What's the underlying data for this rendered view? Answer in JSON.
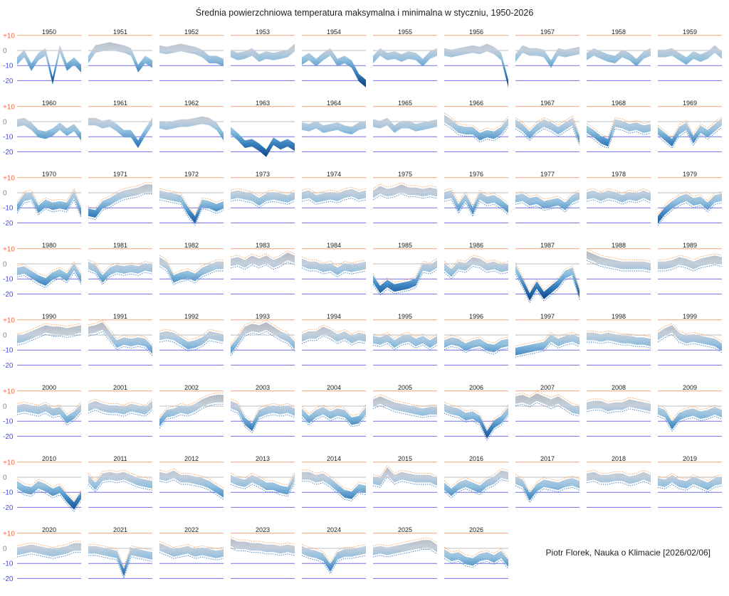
{
  "chart_data": {
    "type": "area",
    "title": "Średnia powierzchniowa temperatura maksymalna i minimalna w styczniu, 1950-2026",
    "credit": "Piotr Florek, Nauka o Klimacie [2026/02/06]",
    "xlabel": "",
    "ylabel": "",
    "ylim": [
      -22,
      12
    ],
    "y_ticks": [
      "+10",
      "0",
      "-10",
      "-20"
    ],
    "y_tick_values": [
      10,
      0,
      -10,
      -20
    ],
    "grid": true,
    "band_width_c": 5,
    "dotted_extremes_from_year": 1966,
    "colors": {
      "plus10": "#f4a07a",
      "zero": "#bdbdbd",
      "minus": "#7272e8",
      "warm": "#b7b7bf",
      "cold": "#1b5a9e",
      "dot_max": "#f5a05a",
      "dot_min": "#3f7fc0"
    },
    "years": [
      {
        "year": "1950",
        "mid": [
          -7,
          -2,
          -11,
          -4,
          -1,
          -20,
          1,
          -11,
          -7,
          -12
        ]
      },
      {
        "year": "1951",
        "mid": [
          -6,
          1,
          2,
          3,
          2,
          1,
          -1,
          -12,
          -6,
          -9
        ]
      },
      {
        "year": "1952",
        "mid": [
          1,
          0,
          1,
          2,
          1,
          0,
          -2,
          -6,
          -6,
          -8
        ]
      },
      {
        "year": "1953",
        "mid": [
          -2,
          -4,
          -3,
          -1,
          -5,
          -3,
          -4,
          -3,
          -2,
          2
        ]
      },
      {
        "year": "1954",
        "mid": [
          -7,
          -4,
          -8,
          -4,
          -1,
          -8,
          -6,
          -9,
          -18,
          -22
        ]
      },
      {
        "year": "1955",
        "mid": [
          -6,
          -1,
          -4,
          -3,
          -5,
          -3,
          -4,
          -8,
          -3,
          -1
        ]
      },
      {
        "year": "1956",
        "mid": [
          -1,
          -2,
          -1,
          0,
          1,
          0,
          2,
          0,
          -4,
          -22
        ]
      },
      {
        "year": "1957",
        "mid": [
          -5,
          1,
          -1,
          -1,
          -2,
          -9,
          -1,
          -2,
          -1,
          0
        ]
      },
      {
        "year": "1958",
        "mid": [
          -4,
          -1,
          -3,
          -5,
          -6,
          -2,
          -4,
          -8,
          -3,
          -1
        ]
      },
      {
        "year": "1959",
        "mid": [
          -2,
          -2,
          -1,
          -4,
          -7,
          -3,
          -5,
          -3,
          1,
          -3
        ]
      },
      {
        "year": "1960",
        "mid": [
          -1,
          0,
          -3,
          -8,
          -9,
          -7,
          -3,
          -7,
          -4,
          -10
        ]
      },
      {
        "year": "1961",
        "mid": [
          0,
          0,
          -2,
          -1,
          -4,
          -8,
          -8,
          -15,
          -7,
          0
        ]
      },
      {
        "year": "1962",
        "mid": [
          -2,
          -3,
          -2,
          -1,
          -1,
          0,
          1,
          0,
          -3,
          -10
        ]
      },
      {
        "year": "1963",
        "mid": [
          -6,
          -10,
          -15,
          -14,
          -17,
          -21,
          -13,
          -16,
          -14,
          -17
        ]
      },
      {
        "year": "1964",
        "mid": [
          -3,
          -4,
          -2,
          -5,
          -4,
          -3,
          -5,
          -6,
          -3,
          -2
        ]
      },
      {
        "year": "1965",
        "mid": [
          -1,
          -2,
          0,
          -5,
          -2,
          -2,
          -4,
          -3,
          -2,
          -1
        ]
      },
      {
        "year": "1966",
        "mid": [
          2,
          -1,
          -5,
          -6,
          -6,
          -10,
          -8,
          -9,
          -6,
          0
        ]
      },
      {
        "year": "1967",
        "mid": [
          -1,
          -4,
          -9,
          -4,
          -1,
          -3,
          -6,
          -3,
          0,
          -12
        ]
      },
      {
        "year": "1968",
        "mid": [
          -5,
          -8,
          -12,
          -14,
          -1,
          -2,
          -4,
          -3,
          -5,
          -4
        ]
      },
      {
        "year": "1969",
        "mid": [
          -6,
          -10,
          -14,
          -6,
          -3,
          -12,
          -5,
          -8,
          -4,
          0
        ]
      },
      {
        "year": "1970",
        "mid": [
          -10,
          -3,
          -2,
          -11,
          -7,
          -9,
          -8,
          -9,
          -1,
          -13
        ]
      },
      {
        "year": "1971",
        "mid": [
          -13,
          -14,
          -8,
          -6,
          -3,
          -1,
          0,
          1,
          3,
          3
        ]
      },
      {
        "year": "1972",
        "mid": [
          -1,
          -2,
          -3,
          -4,
          -12,
          -18,
          -7,
          -8,
          -10,
          -8
        ]
      },
      {
        "year": "1973",
        "mid": [
          -2,
          -1,
          -2,
          -3,
          -6,
          -3,
          -2,
          -3,
          -4,
          -2
        ]
      },
      {
        "year": "1974",
        "mid": [
          -2,
          -1,
          -4,
          -3,
          -2,
          -3,
          -1,
          0,
          -2,
          -1
        ]
      },
      {
        "year": "1975",
        "mid": [
          -1,
          2,
          0,
          1,
          3,
          1,
          1,
          0,
          1,
          0
        ]
      },
      {
        "year": "1976",
        "mid": [
          -2,
          -1,
          -10,
          -3,
          -12,
          -2,
          -5,
          -4,
          -7,
          -11
        ]
      },
      {
        "year": "1977",
        "mid": [
          -4,
          -3,
          -6,
          -5,
          -8,
          -7,
          -6,
          -9,
          -4,
          -2
        ]
      },
      {
        "year": "1978",
        "mid": [
          -2,
          -1,
          -3,
          -1,
          -2,
          -4,
          -2,
          -3,
          -1,
          -3
        ]
      },
      {
        "year": "1979",
        "mid": [
          -18,
          -12,
          -8,
          -5,
          -3,
          -6,
          -5,
          -9,
          -4,
          -3
        ]
      },
      {
        "year": "1980",
        "mid": [
          -5,
          -4,
          -7,
          -10,
          -12,
          -8,
          -6,
          -9,
          -2,
          -10
        ]
      },
      {
        "year": "1981",
        "mid": [
          -1,
          -3,
          -10,
          -5,
          -3,
          -4,
          -3,
          -4,
          -2,
          -3
        ]
      },
      {
        "year": "1982",
        "mid": [
          2,
          -1,
          -10,
          -8,
          -7,
          -9,
          -5,
          -3,
          -1,
          -1
        ]
      },
      {
        "year": "1983",
        "mid": [
          1,
          2,
          0,
          3,
          1,
          3,
          0,
          2,
          5,
          3
        ]
      },
      {
        "year": "1984",
        "mid": [
          1,
          -1,
          -1,
          -3,
          -2,
          -5,
          -2,
          -3,
          -2,
          -1
        ]
      },
      {
        "year": "1985",
        "mid": [
          -10,
          -17,
          -13,
          -16,
          -15,
          -14,
          -12,
          -2,
          -3,
          0
        ]
      },
      {
        "year": "1986",
        "mid": [
          -2,
          -6,
          -1,
          -2,
          2,
          1,
          -2,
          -1,
          -3,
          -2
        ]
      },
      {
        "year": "1987",
        "mid": [
          -3,
          -12,
          -22,
          -14,
          -21,
          -17,
          -13,
          -7,
          -5,
          -20
        ]
      },
      {
        "year": "1988",
        "mid": [
          6,
          4,
          2,
          1,
          0,
          -1,
          -1,
          -1,
          -1,
          -2
        ]
      },
      {
        "year": "1989",
        "mid": [
          -1,
          -1,
          0,
          2,
          1,
          -1,
          1,
          2,
          3,
          2
        ]
      },
      {
        "year": "1990",
        "mid": [
          -3,
          -2,
          0,
          2,
          4,
          3,
          3,
          2,
          3,
          4
        ]
      },
      {
        "year": "1991",
        "mid": [
          3,
          4,
          6,
          0,
          -6,
          -4,
          -5,
          -4,
          -5,
          -10
        ]
      },
      {
        "year": "1992",
        "mid": [
          -1,
          0,
          -1,
          -4,
          -7,
          -6,
          -4,
          0,
          -1,
          -2
        ]
      },
      {
        "year": "1993",
        "mid": [
          -10,
          -4,
          3,
          5,
          4,
          6,
          3,
          0,
          -2,
          -7
        ]
      },
      {
        "year": "1994",
        "mid": [
          -2,
          0,
          0,
          3,
          1,
          -2,
          0,
          -3,
          -1,
          -2
        ]
      },
      {
        "year": "1995",
        "mid": [
          -3,
          -4,
          -2,
          -6,
          -3,
          -2,
          -5,
          -3,
          -6,
          -3
        ]
      },
      {
        "year": "1996",
        "mid": [
          -6,
          -4,
          -5,
          -8,
          -6,
          -5,
          -8,
          -9,
          -6,
          -5
        ]
      },
      {
        "year": "1997",
        "mid": [
          -11,
          -10,
          -9,
          -8,
          -7,
          -2,
          -5,
          -3,
          -2,
          -4
        ]
      },
      {
        "year": "1998",
        "mid": [
          -1,
          -1,
          -2,
          -1,
          -2,
          -3,
          -3,
          -4,
          -4,
          -5
        ]
      },
      {
        "year": "1999",
        "mid": [
          -1,
          2,
          4,
          -1,
          -3,
          -2,
          -3,
          -4,
          -5,
          -8
        ]
      },
      {
        "year": "2000",
        "mid": [
          -2,
          -1,
          -2,
          -3,
          -1,
          -4,
          -3,
          -9,
          -6,
          -1
        ]
      },
      {
        "year": "2001",
        "mid": [
          -1,
          1,
          -1,
          -2,
          -2,
          -3,
          -1,
          -2,
          -3,
          1
        ]
      },
      {
        "year": "2002",
        "mid": [
          -11,
          -5,
          -4,
          -2,
          -3,
          -1,
          2,
          4,
          5,
          5
        ]
      },
      {
        "year": "2003",
        "mid": [
          1,
          -1,
          -10,
          -14,
          -5,
          -3,
          -2,
          -3,
          -2,
          -4
        ]
      },
      {
        "year": "2004",
        "mid": [
          -4,
          -9,
          -5,
          -3,
          -6,
          -4,
          -5,
          -10,
          -9,
          -3
        ]
      },
      {
        "year": "2005",
        "mid": [
          2,
          4,
          2,
          0,
          -1,
          -2,
          -3,
          -4,
          -3,
          -3
        ]
      },
      {
        "year": "2006",
        "mid": [
          -1,
          -3,
          -4,
          -7,
          -6,
          -9,
          -19,
          -12,
          -9,
          -3
        ]
      },
      {
        "year": "2007",
        "mid": [
          4,
          5,
          3,
          6,
          4,
          2,
          4,
          1,
          -2,
          -3
        ]
      },
      {
        "year": "2008",
        "mid": [
          0,
          1,
          1,
          -1,
          0,
          0,
          2,
          1,
          0,
          -1
        ]
      },
      {
        "year": "2009",
        "mid": [
          -3,
          -5,
          -13,
          -7,
          -5,
          -4,
          -6,
          -5,
          -3,
          -5
        ]
      },
      {
        "year": "2010",
        "mid": [
          -5,
          -8,
          -9,
          -5,
          -7,
          -10,
          -8,
          -14,
          -19,
          -12
        ]
      },
      {
        "year": "2011",
        "mid": [
          -1,
          -6,
          0,
          1,
          0,
          1,
          -1,
          -3,
          -4,
          -5
        ]
      },
      {
        "year": "2012",
        "mid": [
          1,
          0,
          2,
          -1,
          -1,
          -2,
          -3,
          -5,
          -8,
          -11
        ]
      },
      {
        "year": "2013",
        "mid": [
          -1,
          -3,
          -4,
          -1,
          -3,
          -6,
          -6,
          -8,
          -9,
          0
        ]
      },
      {
        "year": "2014",
        "mid": [
          1,
          1,
          -1,
          0,
          -3,
          -7,
          -11,
          -12,
          -7,
          -8
        ]
      },
      {
        "year": "2015",
        "mid": [
          -2,
          -3,
          4,
          -1,
          1,
          0,
          -1,
          -1,
          -1,
          -3
        ]
      },
      {
        "year": "2016",
        "mid": [
          -6,
          -10,
          -6,
          -4,
          -6,
          -8,
          -4,
          -2,
          2,
          1
        ]
      },
      {
        "year": "2017",
        "mid": [
          -2,
          -4,
          -13,
          -7,
          -4,
          -5,
          -6,
          -4,
          -3,
          -5
        ]
      },
      {
        "year": "2018",
        "mid": [
          0,
          1,
          -1,
          -1,
          0,
          0,
          -2,
          -1,
          1,
          -1
        ]
      },
      {
        "year": "2019",
        "mid": [
          -3,
          -4,
          -1,
          -4,
          -5,
          -2,
          -4,
          -6,
          -3,
          -2
        ]
      },
      {
        "year": "2020",
        "mid": [
          -2,
          -1,
          0,
          -1,
          -2,
          -3,
          -2,
          -1,
          1,
          1
        ]
      },
      {
        "year": "2021",
        "mid": [
          -1,
          -1,
          -2,
          -3,
          -4,
          -16,
          -2,
          -3,
          -4,
          -5
        ]
      },
      {
        "year": "2022",
        "mid": [
          1,
          -1,
          -3,
          -2,
          -1,
          -3,
          -2,
          -3,
          -4,
          -3
        ]
      },
      {
        "year": "2023",
        "mid": [
          4,
          2,
          2,
          1,
          1,
          0,
          0,
          -1,
          0,
          -1
        ]
      },
      {
        "year": "2024",
        "mid": [
          -1,
          -3,
          -4,
          -6,
          -13,
          -5,
          -3,
          -3,
          -2,
          -1
        ]
      },
      {
        "year": "2025",
        "mid": [
          -2,
          -1,
          -2,
          -1,
          0,
          1,
          2,
          3,
          3,
          0
        ]
      },
      {
        "year": "2026",
        "mid": [
          -3,
          -6,
          -5,
          -8,
          -9,
          -6,
          -5,
          -7,
          -4,
          -10
        ]
      }
    ]
  }
}
